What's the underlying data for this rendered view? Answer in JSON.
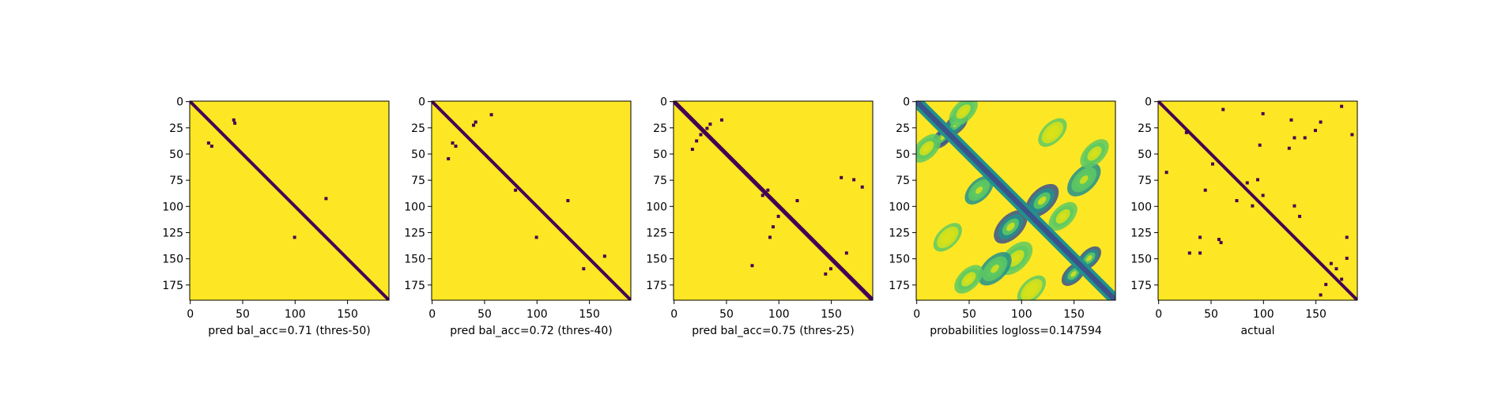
{
  "colors": {
    "background": "#fde725",
    "contact": "#440154",
    "prob_light": "#d8e219",
    "prob_mid": "#5ec962",
    "prob_high": "#21918c",
    "prob_peak": "#3b528b"
  },
  "chart_data": [
    {
      "type": "heatmap",
      "caption": "pred bal_acc=0.71 (thres-50)",
      "matrix_size": 190,
      "xticks": [
        0,
        50,
        100,
        150
      ],
      "yticks": [
        0,
        25,
        50,
        75,
        100,
        125,
        150,
        175
      ],
      "diagonal_band_width": 3,
      "off_diagonal_contacts": [
        [
          18,
          42
        ],
        [
          21,
          43
        ],
        [
          40,
          18
        ],
        [
          43,
          21
        ],
        [
          130,
          100
        ],
        [
          93,
          130
        ]
      ]
    },
    {
      "type": "heatmap",
      "caption": "pred bal_acc=0.72 (thres-40)",
      "matrix_size": 190,
      "xticks": [
        0,
        50,
        100,
        150
      ],
      "yticks": [
        0,
        25,
        50,
        75,
        100,
        125,
        150,
        175
      ],
      "diagonal_band_width": 3,
      "off_diagonal_contacts": [
        [
          20,
          42
        ],
        [
          23,
          40
        ],
        [
          40,
          20
        ],
        [
          43,
          23
        ],
        [
          13,
          57
        ],
        [
          55,
          16
        ],
        [
          85,
          80
        ],
        [
          130,
          100
        ],
        [
          95,
          130
        ],
        [
          160,
          145
        ],
        [
          148,
          165
        ]
      ]
    },
    {
      "type": "heatmap",
      "caption": "pred bal_acc=0.75 (thres-25)",
      "matrix_size": 190,
      "xticks": [
        0,
        50,
        100,
        150
      ],
      "yticks": [
        0,
        25,
        50,
        75,
        100,
        125,
        150,
        175
      ],
      "diagonal_band_width": 4,
      "off_diagonal_contacts": [
        [
          22,
          35
        ],
        [
          26,
          32
        ],
        [
          32,
          26
        ],
        [
          38,
          22
        ],
        [
          46,
          18
        ],
        [
          18,
          46
        ],
        [
          85,
          90
        ],
        [
          90,
          85
        ],
        [
          95,
          118
        ],
        [
          110,
          100
        ],
        [
          120,
          95
        ],
        [
          130,
          92
        ],
        [
          160,
          150
        ],
        [
          165,
          145
        ],
        [
          145,
          165
        ],
        [
          75,
          172
        ],
        [
          82,
          180
        ],
        [
          157,
          75
        ],
        [
          73,
          160
        ]
      ]
    },
    {
      "type": "heatmap",
      "caption": "probabilities logloss=0.147594",
      "matrix_size": 190,
      "xticks": [
        0,
        50,
        100,
        150
      ],
      "yticks": [
        0,
        25,
        50,
        75,
        100,
        125,
        150,
        175
      ],
      "diagonal_band_width": 5,
      "probability_blobs": [
        [
          35,
          25,
          9,
          0.7
        ],
        [
          22,
          38,
          10,
          0.6
        ],
        [
          45,
          10,
          12,
          0.35
        ],
        [
          10,
          45,
          12,
          0.35
        ],
        [
          85,
          60,
          12,
          0.45
        ],
        [
          120,
          90,
          14,
          0.55
        ],
        [
          95,
          120,
          14,
          0.55
        ],
        [
          150,
          95,
          14,
          0.35
        ],
        [
          165,
          150,
          10,
          0.6
        ],
        [
          150,
          165,
          10,
          0.6
        ],
        [
          160,
          75,
          14,
          0.45
        ],
        [
          75,
          160,
          14,
          0.45
        ],
        [
          170,
          50,
          12,
          0.3
        ],
        [
          50,
          170,
          12,
          0.3
        ],
        [
          130,
          30,
          12,
          0.25
        ],
        [
          30,
          130,
          12,
          0.25
        ],
        [
          110,
          140,
          12,
          0.3
        ],
        [
          180,
          110,
          12,
          0.25
        ]
      ]
    },
    {
      "type": "heatmap",
      "caption": "actual",
      "matrix_size": 190,
      "xticks": [
        0,
        50,
        100,
        150
      ],
      "yticks": [
        0,
        25,
        50,
        75,
        100,
        125,
        150,
        175
      ],
      "diagonal_band_width": 3,
      "off_diagonal_contacts": [
        [
          30,
          27
        ],
        [
          60,
          52
        ],
        [
          68,
          8
        ],
        [
          8,
          62
        ],
        [
          12,
          100
        ],
        [
          42,
          97
        ],
        [
          18,
          127
        ],
        [
          35,
          130
        ],
        [
          35,
          140
        ],
        [
          45,
          125
        ],
        [
          5,
          175
        ],
        [
          130,
          40
        ],
        [
          135,
          60
        ],
        [
          175,
          160
        ],
        [
          170,
          175
        ],
        [
          185,
          155
        ],
        [
          160,
          170
        ],
        [
          150,
          180
        ],
        [
          155,
          165
        ],
        [
          95,
          75
        ],
        [
          75,
          95
        ],
        [
          90,
          100
        ],
        [
          100,
          90
        ],
        [
          130,
          180
        ],
        [
          28,
          150
        ],
        [
          20,
          155
        ],
        [
          145,
          30
        ],
        [
          145,
          40
        ],
        [
          132,
          58
        ],
        [
          110,
          135
        ],
        [
          100,
          130
        ],
        [
          32,
          185
        ],
        [
          85,
          45
        ],
        [
          78,
          85
        ]
      ]
    }
  ]
}
